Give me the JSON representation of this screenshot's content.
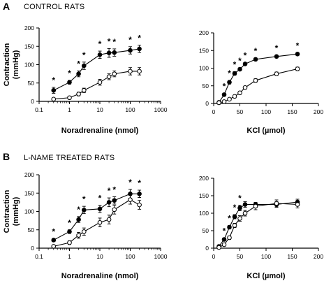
{
  "panels": {
    "a": {
      "letter": "A",
      "title": "CONTROL RATS"
    },
    "b": {
      "letter": "B",
      "title": "L-NAME TREATED RATS"
    }
  },
  "chart_data": [
    {
      "type": "line",
      "xscale": "log",
      "xlabel": "Noradrenaline (nmol)",
      "ylabel": "Contraction\n(mmHg)",
      "xlim": [
        0.1,
        1000
      ],
      "ylim": [
        0,
        200
      ],
      "xticks": [
        0.1,
        1,
        10,
        100,
        1000
      ],
      "xticklabels": [
        "0.1",
        "1",
        "10",
        "100",
        "1000"
      ],
      "yticks": [
        0,
        50,
        100,
        150,
        200
      ],
      "yticklabels": [
        "0",
        "50",
        "100",
        "150",
        "200"
      ],
      "series": [
        {
          "marker": "filled",
          "x": [
            0.3,
            1,
            2,
            3,
            10,
            20,
            30,
            100,
            200
          ],
          "y": [
            30,
            52,
            75,
            97,
            127,
            132,
            133,
            139,
            143
          ],
          "err": [
            8,
            5,
            8,
            10,
            10,
            12,
            10,
            10,
            10
          ]
        },
        {
          "marker": "open",
          "x": [
            0.3,
            1,
            2,
            3,
            10,
            20,
            30,
            100,
            200
          ],
          "y": [
            6,
            10,
            20,
            30,
            52,
            67,
            75,
            82,
            82
          ],
          "err": [
            3,
            4,
            5,
            6,
            8,
            8,
            8,
            10,
            10
          ]
        }
      ],
      "significance": {
        "label": "*",
        "x": [
          0.3,
          1,
          2,
          3,
          10,
          20,
          30,
          100,
          200
        ]
      }
    },
    {
      "type": "line",
      "xlabel": "KCl (µmol)",
      "xlim": [
        0,
        200
      ],
      "ylim": [
        0,
        200
      ],
      "xticks": [
        0,
        50,
        100,
        150,
        200
      ],
      "xticklabels": [
        "0",
        "50",
        "100",
        "150",
        "200"
      ],
      "yticks": [
        0,
        50,
        100,
        150,
        200
      ],
      "yticklabels": [
        "0",
        "50",
        "100",
        "150",
        "200"
      ],
      "series": [
        {
          "marker": "filled",
          "x": [
            10,
            20,
            30,
            40,
            50,
            60,
            80,
            120,
            160
          ],
          "y": [
            3,
            25,
            60,
            85,
            97,
            112,
            125,
            133,
            140
          ],
          "err": [
            2,
            4,
            5,
            5,
            4,
            4,
            4,
            4,
            4
          ]
        },
        {
          "marker": "open",
          "x": [
            10,
            20,
            30,
            40,
            50,
            60,
            80,
            120,
            160
          ],
          "y": [
            2,
            5,
            12,
            20,
            30,
            45,
            65,
            84,
            98
          ],
          "err": [
            2,
            3,
            3,
            4,
            4,
            4,
            5,
            5,
            5
          ]
        }
      ],
      "significance": {
        "label": "*",
        "x": [
          20,
          30,
          40,
          50,
          60,
          80,
          120,
          160
        ]
      }
    },
    {
      "type": "line",
      "xscale": "log",
      "xlabel": "Noradrenaline (nmol)",
      "ylabel": "Contraction\n(mmHg)",
      "xlim": [
        0.1,
        1000
      ],
      "ylim": [
        0,
        200
      ],
      "xticks": [
        0.1,
        1,
        10,
        100,
        1000
      ],
      "xticklabels": [
        "0.1",
        "1",
        "10",
        "100",
        "1000"
      ],
      "yticks": [
        0,
        50,
        100,
        150,
        200
      ],
      "yticklabels": [
        "0",
        "50",
        "100",
        "150",
        "200"
      ],
      "series": [
        {
          "marker": "filled",
          "x": [
            0.3,
            1,
            2,
            3,
            10,
            20,
            30,
            100,
            200
          ],
          "y": [
            22,
            45,
            78,
            104,
            107,
            125,
            130,
            148,
            148
          ],
          "err": [
            4,
            5,
            8,
            10,
            10,
            12,
            10,
            12,
            10
          ]
        },
        {
          "marker": "open",
          "x": [
            0.3,
            1,
            2,
            3,
            10,
            20,
            30,
            100,
            200
          ],
          "y": [
            5,
            15,
            35,
            45,
            70,
            78,
            105,
            132,
            118
          ],
          "err": [
            3,
            5,
            8,
            10,
            12,
            12,
            12,
            12,
            12
          ]
        }
      ],
      "significance": {
        "label": "*",
        "x": [
          0.3,
          1,
          2,
          3,
          10,
          20,
          30,
          100,
          200
        ]
      }
    },
    {
      "type": "line",
      "xlabel": "KCl (µmol)",
      "xlim": [
        0,
        200
      ],
      "ylim": [
        0,
        200
      ],
      "xticks": [
        0,
        50,
        100,
        150,
        200
      ],
      "xticklabels": [
        "0",
        "50",
        "100",
        "150",
        "200"
      ],
      "yticks": [
        0,
        50,
        100,
        150,
        200
      ],
      "yticklabels": [
        "0",
        "50",
        "100",
        "150",
        "200"
      ],
      "series": [
        {
          "marker": "filled",
          "x": [
            10,
            20,
            30,
            40,
            50,
            60,
            80,
            120,
            160
          ],
          "y": [
            5,
            25,
            60,
            90,
            115,
            125,
            125,
            125,
            132
          ],
          "err": [
            2,
            4,
            5,
            6,
            8,
            8,
            6,
            8,
            8
          ]
        },
        {
          "marker": "open",
          "x": [
            10,
            20,
            30,
            40,
            50,
            60,
            80,
            120,
            160
          ],
          "y": [
            2,
            10,
            30,
            65,
            85,
            100,
            120,
            128,
            125
          ],
          "err": [
            2,
            3,
            5,
            6,
            8,
            8,
            10,
            10,
            10
          ]
        }
      ],
      "significance": {
        "label": "*",
        "x": [
          20,
          30,
          40,
          50
        ]
      }
    }
  ]
}
